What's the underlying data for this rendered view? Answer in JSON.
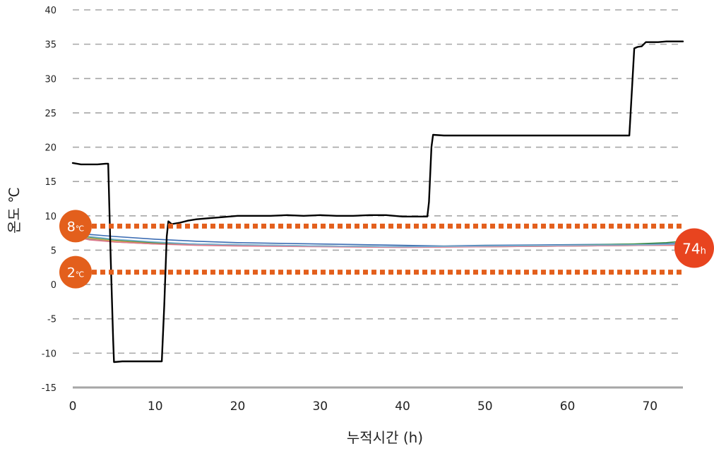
{
  "chart_data": {
    "type": "line",
    "xlabel": "누적시간 (h)",
    "ylabel": "온도 ℃",
    "xlim": [
      0,
      74
    ],
    "ylim": [
      -15,
      40
    ],
    "x_ticks": [
      "0",
      "10",
      "20",
      "30",
      "40",
      "50",
      "60",
      "70"
    ],
    "y_ticks": [
      "40",
      "35",
      "30",
      "25",
      "20",
      "15",
      "10",
      "5",
      "0",
      "-5",
      "-10",
      "-15"
    ],
    "grid": "horizontal-dashed",
    "thresholds": [
      {
        "value": 8.5,
        "label_main": "8",
        "label_unit": "℃",
        "color": "#E35F1C"
      },
      {
        "value": 1.8,
        "label_main": "2",
        "label_unit": "℃",
        "color": "#E35F1C"
      }
    ],
    "end_marker": {
      "label_main": "74",
      "label_unit": "h",
      "color": "#E8441F"
    },
    "series": [
      {
        "color": "#000000",
        "points": [
          [
            0,
            17.7
          ],
          [
            1,
            17.5
          ],
          [
            2,
            17.5
          ],
          [
            3,
            17.5
          ],
          [
            4,
            17.6
          ],
          [
            4.3,
            17.6
          ],
          [
            4.6,
            4
          ],
          [
            4.9,
            -8
          ],
          [
            5.0,
            -11.3
          ],
          [
            6,
            -11.2
          ],
          [
            8,
            -11.2
          ],
          [
            10,
            -11.2
          ],
          [
            10.8,
            -11.2
          ],
          [
            11.1,
            -3
          ],
          [
            11.4,
            7
          ],
          [
            11.6,
            9.2
          ],
          [
            12,
            8.8
          ],
          [
            13,
            9.0
          ],
          [
            14,
            9.3
          ],
          [
            15,
            9.5
          ],
          [
            16,
            9.6
          ],
          [
            17,
            9.7
          ],
          [
            18,
            9.8
          ],
          [
            19,
            9.9
          ],
          [
            20,
            10.0
          ],
          [
            22,
            10.0
          ],
          [
            24,
            10.0
          ],
          [
            26,
            10.1
          ],
          [
            28,
            10.0
          ],
          [
            30,
            10.1
          ],
          [
            32,
            10.0
          ],
          [
            34,
            10.0
          ],
          [
            36,
            10.1
          ],
          [
            38,
            10.1
          ],
          [
            40,
            9.9
          ],
          [
            42,
            9.9
          ],
          [
            43.0,
            9.9
          ],
          [
            43.2,
            12
          ],
          [
            43.5,
            20
          ],
          [
            43.7,
            21.8
          ],
          [
            45,
            21.7
          ],
          [
            50,
            21.7
          ],
          [
            55,
            21.7
          ],
          [
            60,
            21.7
          ],
          [
            65,
            21.7
          ],
          [
            67.5,
            21.7
          ],
          [
            67.8,
            28
          ],
          [
            68.1,
            34.4
          ],
          [
            68.5,
            34.6
          ],
          [
            69,
            34.7
          ],
          [
            69.5,
            35.3
          ],
          [
            71,
            35.3
          ],
          [
            72,
            35.4
          ],
          [
            73,
            35.4
          ],
          [
            74,
            35.4
          ]
        ]
      },
      {
        "color": "#3B6CB3",
        "points": [
          [
            0,
            7.5
          ],
          [
            2,
            7.3
          ],
          [
            5,
            7.0
          ],
          [
            10,
            6.6
          ],
          [
            15,
            6.3
          ],
          [
            20,
            6.1
          ],
          [
            30,
            5.9
          ],
          [
            40,
            5.7
          ],
          [
            45,
            5.6
          ],
          [
            50,
            5.7
          ],
          [
            60,
            5.8
          ],
          [
            70,
            5.9
          ],
          [
            74,
            6.0
          ]
        ]
      },
      {
        "color": "#E2A23A",
        "points": [
          [
            0,
            7.2
          ],
          [
            2,
            6.7
          ],
          [
            5,
            6.3
          ],
          [
            10,
            6.0
          ],
          [
            15,
            5.8
          ],
          [
            20,
            5.7
          ],
          [
            30,
            5.6
          ],
          [
            40,
            5.5
          ],
          [
            50,
            5.5
          ],
          [
            60,
            5.6
          ],
          [
            70,
            5.7
          ],
          [
            74,
            5.7
          ]
        ]
      },
      {
        "color": "#3E8E47",
        "points": [
          [
            0,
            7.3
          ],
          [
            2,
            6.9
          ],
          [
            5,
            6.5
          ],
          [
            10,
            6.1
          ],
          [
            15,
            5.9
          ],
          [
            20,
            5.8
          ],
          [
            30,
            5.6
          ],
          [
            40,
            5.5
          ],
          [
            50,
            5.6
          ],
          [
            60,
            5.7
          ],
          [
            68,
            5.9
          ],
          [
            72,
            6.1
          ],
          [
            74,
            6.3
          ]
        ]
      },
      {
        "color": "#8A8A8A",
        "points": [
          [
            0,
            7.1
          ],
          [
            2,
            6.6
          ],
          [
            5,
            6.2
          ],
          [
            10,
            5.9
          ],
          [
            15,
            5.8
          ],
          [
            20,
            5.7
          ],
          [
            30,
            5.6
          ],
          [
            40,
            5.5
          ],
          [
            50,
            5.5
          ],
          [
            60,
            5.6
          ],
          [
            70,
            5.7
          ],
          [
            74,
            5.8
          ]
        ]
      },
      {
        "color": "#E07A8C",
        "points": [
          [
            0,
            7.0
          ],
          [
            2,
            6.5
          ],
          [
            5,
            6.2
          ],
          [
            10,
            5.9
          ],
          [
            15,
            5.7
          ],
          [
            20,
            5.6
          ],
          [
            30,
            5.5
          ],
          [
            40,
            5.4
          ],
          [
            50,
            5.5
          ],
          [
            60,
            5.6
          ],
          [
            70,
            5.7
          ],
          [
            74,
            5.7
          ]
        ]
      },
      {
        "color": "#7FB3D5",
        "points": [
          [
            0,
            7.4
          ],
          [
            2,
            7.0
          ],
          [
            5,
            6.6
          ],
          [
            10,
            6.2
          ],
          [
            15,
            5.9
          ],
          [
            20,
            5.8
          ],
          [
            30,
            5.6
          ],
          [
            40,
            5.5
          ],
          [
            50,
            5.6
          ],
          [
            60,
            5.7
          ],
          [
            70,
            5.8
          ],
          [
            74,
            5.9
          ]
        ]
      }
    ]
  }
}
